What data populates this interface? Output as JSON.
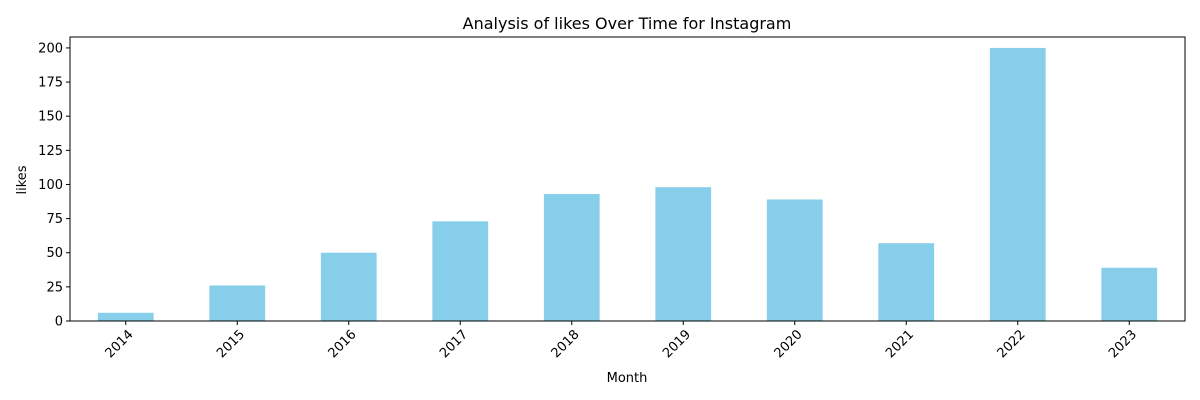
{
  "chart_data": {
    "type": "bar",
    "title": "Analysis of likes Over Time for Instagram",
    "xlabel": "Month",
    "ylabel": "likes",
    "categories": [
      "2014",
      "2015",
      "2016",
      "2017",
      "2018",
      "2019",
      "2020",
      "2021",
      "2022",
      "2023"
    ],
    "values": [
      6,
      26,
      50,
      73,
      93,
      98,
      89,
      57,
      200,
      39
    ],
    "ylim": [
      0,
      208
    ],
    "yticks": [
      0,
      25,
      50,
      75,
      100,
      125,
      150,
      175,
      200
    ],
    "bar_color": "#87CEEB",
    "grid": false,
    "legend": "none"
  }
}
